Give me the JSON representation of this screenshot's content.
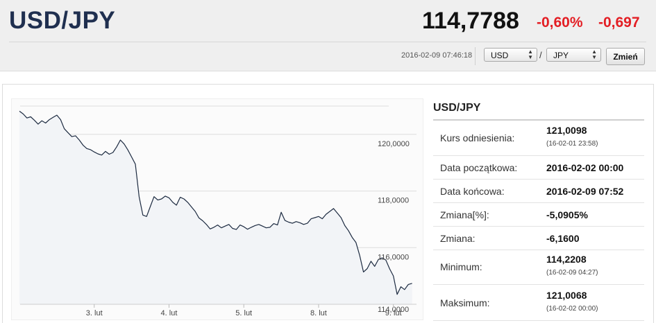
{
  "header": {
    "pair": "USD/JPY",
    "price": "114,7788",
    "change_percent": "-0,60%",
    "change_abs": "-0,697",
    "timestamp": "2016-02-09 07:46:18",
    "base_currency": "USD",
    "quote_currency": "JPY",
    "slash": "/",
    "change_button": "Zmień",
    "colors": {
      "negative": "#e31e24",
      "title": "#1f2f4f"
    }
  },
  "info": {
    "title": "USD/JPY",
    "rows": [
      {
        "label": "Kurs odniesienia:",
        "value": "121,0098",
        "sub": "(16-02-01 23:58)"
      },
      {
        "label": "Data początkowa:",
        "value": "2016-02-02 00:00"
      },
      {
        "label": "Data końcowa:",
        "value": "2016-02-09 07:52"
      },
      {
        "label": "Zmiana[%]:",
        "value": "-5,0905%"
      },
      {
        "label": "Zmiana:",
        "value": "-6,1600"
      },
      {
        "label": "Minimum:",
        "value": "114,2208",
        "sub": "(16-02-09 04:27)"
      },
      {
        "label": "Maksimum:",
        "value": "121,0068",
        "sub": "(16-02-02 00:00)"
      }
    ]
  },
  "chart_data": {
    "type": "area",
    "title": "",
    "xlabel": "",
    "ylabel": "",
    "x_tick_labels": [
      "3. lut",
      "4. lut",
      "5. lut",
      "8. lut",
      "9. lut"
    ],
    "y_tick_labels": [
      "120,0000",
      "118,0000",
      "116,0000",
      "114,0000"
    ],
    "y_ticks": [
      120,
      118,
      116,
      114
    ],
    "ylim": [
      114,
      121
    ],
    "x_unit": "trading days since 2016-02-02 00:00 (weekend omitted)",
    "x_ticks": [
      1,
      2,
      3,
      4,
      5
    ],
    "xlim": [
      0,
      5.3
    ],
    "grid": true,
    "series": [
      {
        "color": "#1c2a40",
        "fill": "#f2f4f7",
        "x": [
          0,
          0.05,
          0.1,
          0.15,
          0.2,
          0.25,
          0.3,
          0.35,
          0.4,
          0.45,
          0.5,
          0.55,
          0.6,
          0.65,
          0.7,
          0.75,
          0.8,
          0.85,
          0.9,
          0.95,
          1.0,
          1.05,
          1.1,
          1.15,
          1.2,
          1.25,
          1.3,
          1.35,
          1.4,
          1.45,
          1.5,
          1.55,
          1.6,
          1.65,
          1.7,
          1.75,
          1.8,
          1.85,
          1.9,
          1.95,
          2.0,
          2.05,
          2.1,
          2.15,
          2.2,
          2.25,
          2.3,
          2.35,
          2.4,
          2.45,
          2.5,
          2.55,
          2.6,
          2.65,
          2.7,
          2.75,
          2.8,
          2.85,
          2.9,
          2.95,
          3.0,
          3.05,
          3.1,
          3.15,
          3.2,
          3.25,
          3.3,
          3.35,
          3.4,
          3.45,
          3.5,
          3.55,
          3.6,
          3.65,
          3.7,
          3.75,
          3.8,
          3.85,
          3.9,
          3.95,
          4.0,
          4.05,
          4.1,
          4.15,
          4.2,
          4.25,
          4.3,
          4.35,
          4.4,
          4.45,
          4.5,
          4.55,
          4.6,
          4.65,
          4.7,
          4.75,
          4.8,
          4.85,
          4.9,
          4.95,
          5.0,
          5.05,
          5.1,
          5.15,
          5.2,
          5.25
        ],
        "y": [
          120.82,
          120.72,
          120.58,
          120.62,
          120.5,
          120.36,
          120.48,
          120.4,
          120.52,
          120.6,
          120.68,
          120.52,
          120.2,
          120.06,
          119.92,
          119.95,
          119.8,
          119.62,
          119.5,
          119.46,
          119.38,
          119.31,
          119.27,
          119.4,
          119.3,
          119.36,
          119.56,
          119.8,
          119.66,
          119.45,
          119.2,
          118.95,
          117.8,
          117.15,
          117.1,
          117.45,
          117.8,
          117.68,
          117.72,
          117.82,
          117.76,
          117.6,
          117.5,
          117.78,
          117.72,
          117.6,
          117.44,
          117.28,
          117.05,
          116.95,
          116.82,
          116.66,
          116.72,
          116.8,
          116.7,
          116.76,
          116.82,
          116.68,
          116.64,
          116.8,
          116.74,
          116.65,
          116.72,
          116.78,
          116.82,
          116.76,
          116.7,
          116.72,
          116.85,
          116.8,
          117.25,
          116.96,
          116.9,
          116.86,
          116.92,
          116.88,
          116.82,
          116.86,
          117.02,
          117.06,
          117.1,
          117.02,
          117.18,
          117.28,
          117.38,
          117.22,
          117.06,
          116.78,
          116.6,
          116.36,
          116.18,
          115.72,
          115.14,
          115.26,
          115.52,
          115.34,
          115.58,
          115.64,
          115.56,
          115.25,
          115.0,
          114.35,
          114.62,
          114.52,
          114.7,
          114.74
        ]
      }
    ]
  }
}
